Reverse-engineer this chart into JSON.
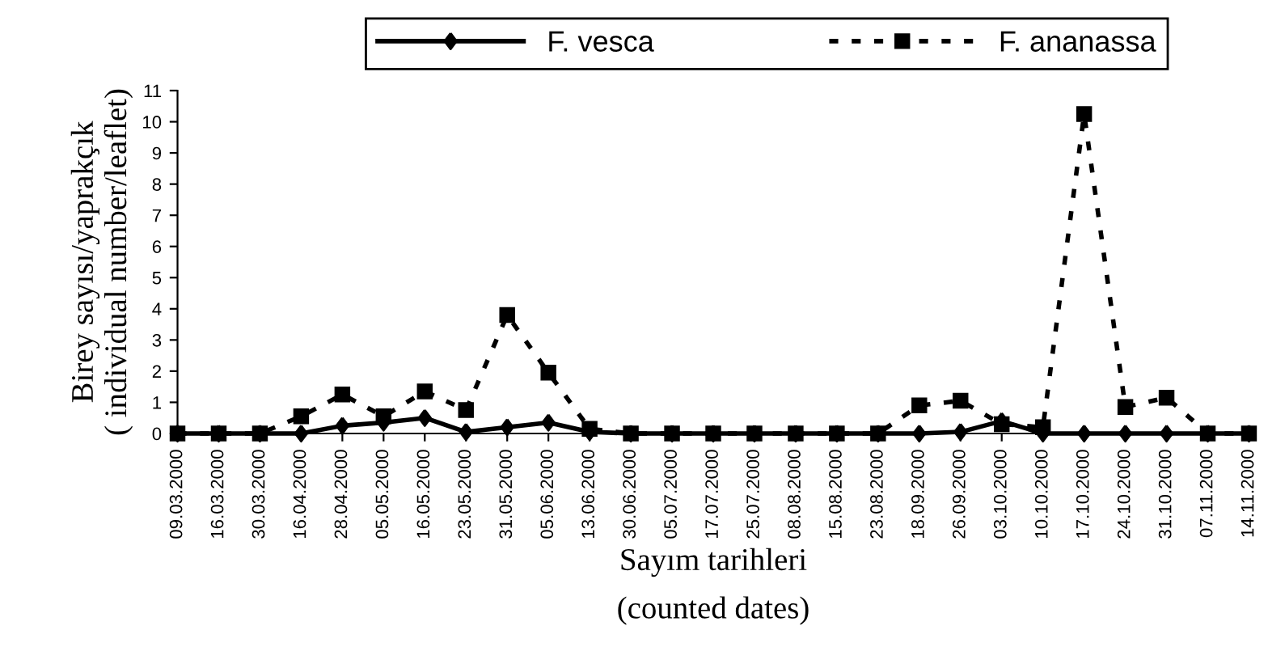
{
  "chart_data": {
    "type": "line",
    "xlabel": "Sayım tarihleri\n(counted dates)",
    "ylabel": "Birey sayısı/yaprakçık\n( individual number/leaflet)",
    "categories": [
      "09.03.2000",
      "16.03.2000",
      "30.03.2000",
      "16.04.2000",
      "28.04.2000",
      "05.05.2000",
      "16.05.2000",
      "23.05.2000",
      "31.05.2000",
      "05.06.2000",
      "13.06.2000",
      "30.06.2000",
      "05.07.2000",
      "17.07.2000",
      "25.07.2000",
      "08.08.2000",
      "15.08.2000",
      "23.08.2000",
      "18.09.2000",
      "26.09.2000",
      "03.10.2000",
      "10.10.2000",
      "17.10.2000",
      "24.10.2000",
      "31.10.2000",
      "07.11.2000",
      "14.11.2000"
    ],
    "series": [
      {
        "name": "F. vesca",
        "color": "#000000",
        "marker": "diamond",
        "line_style": "solid",
        "values": [
          0,
          0,
          0,
          0,
          0.25,
          0.35,
          0.5,
          0.05,
          0.2,
          0.35,
          0.05,
          0,
          0,
          0,
          0,
          0,
          0,
          0,
          0,
          0.05,
          0.4,
          0,
          0,
          0,
          0,
          0,
          0
        ]
      },
      {
        "name": "F. ananassa",
        "color": "#000000",
        "marker": "square",
        "line_style": "dotted",
        "values": [
          0,
          0,
          0,
          0.55,
          1.25,
          0.55,
          1.35,
          0.75,
          3.8,
          1.95,
          0.15,
          0,
          0,
          0,
          0,
          0,
          0,
          0,
          0.9,
          1.05,
          0.3,
          0.2,
          10.25,
          0.85,
          1.15,
          0,
          0
        ]
      }
    ],
    "ylim": [
      0,
      11
    ],
    "yticks": [
      0,
      1,
      2,
      3,
      4,
      5,
      6,
      7,
      8,
      9,
      10,
      11
    ],
    "grid": false,
    "legend": "top"
  }
}
